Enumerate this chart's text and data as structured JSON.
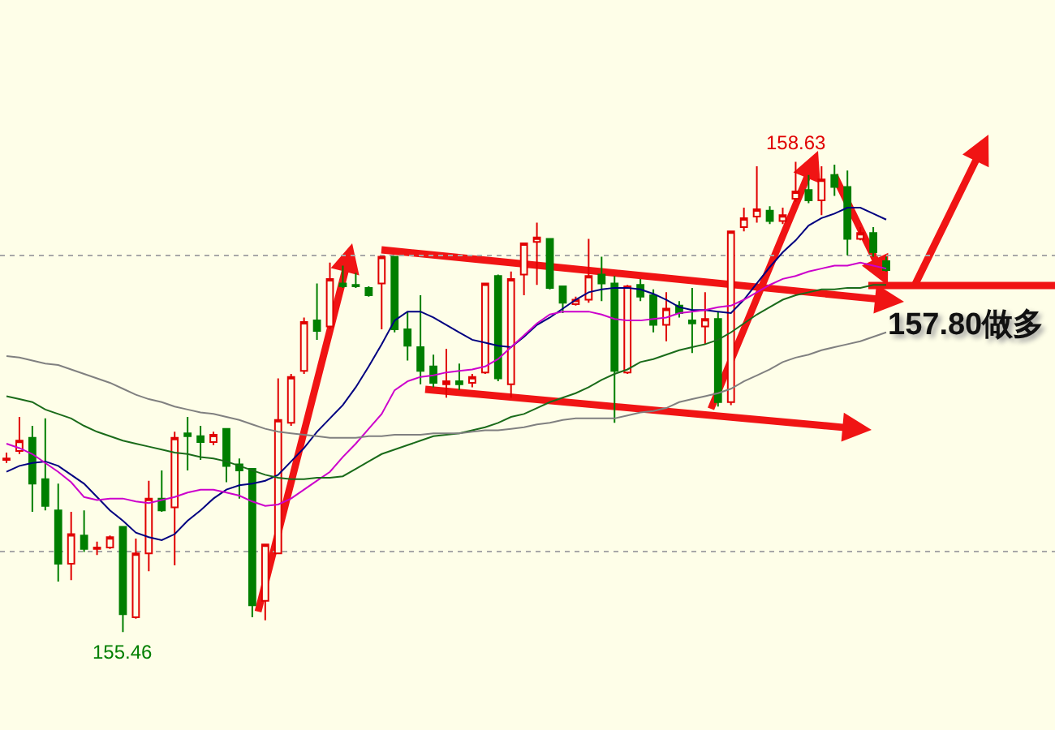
{
  "chart_data": {
    "type": "candlestick",
    "categories": [
      null,
      null,
      null,
      null,
      null,
      null,
      null,
      null,
      null,
      null,
      null,
      null,
      null,
      null,
      null,
      null,
      null,
      null,
      null,
      null,
      null,
      null,
      null,
      null,
      null,
      null,
      null,
      null,
      null,
      null,
      null,
      null,
      null,
      null,
      null,
      null,
      null,
      null,
      null,
      null,
      null,
      null,
      null,
      null,
      null,
      null,
      null,
      null,
      null,
      null,
      null,
      null,
      null,
      null,
      null,
      null,
      null,
      null,
      null,
      null,
      null,
      null,
      null,
      null,
      null,
      null,
      null,
      null,
      null
    ],
    "ohlc": [
      [
        156.62,
        156.67,
        156.6,
        156.63
      ],
      [
        156.68,
        156.91,
        156.66,
        156.75
      ],
      [
        156.77,
        156.85,
        156.27,
        156.46
      ],
      [
        156.49,
        156.9,
        156.28,
        156.31
      ],
      [
        156.28,
        156.46,
        155.8,
        155.92
      ],
      [
        155.92,
        156.27,
        155.81,
        156.12
      ],
      [
        156.11,
        156.28,
        156.0,
        156.02
      ],
      [
        156.02,
        156.07,
        155.98,
        156.03
      ],
      [
        156.03,
        156.11,
        156.02,
        156.1
      ],
      [
        156.17,
        156.17,
        155.46,
        155.58
      ],
      [
        155.56,
        156.09,
        155.55,
        155.99
      ],
      [
        155.99,
        156.48,
        155.87,
        156.36
      ],
      [
        156.36,
        156.55,
        156.27,
        156.28
      ],
      [
        156.3,
        156.81,
        155.91,
        156.77
      ],
      [
        156.8,
        156.91,
        156.55,
        156.78
      ],
      [
        156.78,
        156.85,
        156.62,
        156.74
      ],
      [
        156.74,
        156.81,
        156.72,
        156.79
      ],
      [
        156.83,
        156.83,
        156.47,
        156.58
      ],
      [
        156.59,
        156.63,
        156.36,
        156.55
      ],
      [
        156.56,
        156.56,
        155.56,
        155.64
      ],
      [
        155.67,
        156.05,
        155.54,
        156.05
      ],
      [
        155.99,
        157.17,
        155.99,
        156.89
      ],
      [
        156.87,
        157.2,
        156.85,
        157.18
      ],
      [
        157.22,
        157.58,
        157.2,
        157.55
      ],
      [
        157.56,
        157.81,
        157.43,
        157.49
      ],
      [
        157.52,
        157.95,
        157.5,
        157.84
      ],
      [
        157.81,
        157.93,
        157.78,
        157.79
      ],
      [
        157.8,
        157.88,
        157.78,
        157.79
      ],
      [
        157.78,
        157.79,
        157.72,
        157.73
      ],
      [
        157.81,
        157.99,
        157.5,
        157.99
      ],
      [
        157.99,
        157.99,
        157.48,
        157.5
      ],
      [
        157.5,
        157.62,
        157.29,
        157.39
      ],
      [
        157.38,
        157.73,
        157.13,
        157.22
      ],
      [
        157.25,
        157.33,
        157.11,
        157.14
      ],
      [
        157.13,
        157.37,
        157.04,
        157.15
      ],
      [
        157.15,
        157.27,
        157.09,
        157.13
      ],
      [
        157.14,
        157.2,
        157.11,
        157.18
      ],
      [
        157.21,
        157.81,
        157.2,
        157.81
      ],
      [
        157.86,
        157.87,
        157.15,
        157.17
      ],
      [
        157.13,
        157.89,
        157.04,
        157.84
      ],
      [
        157.87,
        158.08,
        157.73,
        158.08
      ],
      [
        158.09,
        158.22,
        157.8,
        158.12
      ],
      [
        158.11,
        158.11,
        157.77,
        157.78
      ],
      [
        157.79,
        157.79,
        157.61,
        157.68
      ],
      [
        157.67,
        157.72,
        157.66,
        157.7
      ],
      [
        157.7,
        158.11,
        157.68,
        157.86
      ],
      [
        157.87,
        157.99,
        157.69,
        157.81
      ],
      [
        157.81,
        157.86,
        156.87,
        157.22
      ],
      [
        157.21,
        157.8,
        157.2,
        157.79
      ],
      [
        157.8,
        157.84,
        157.69,
        157.72
      ],
      [
        157.73,
        157.77,
        157.48,
        157.53
      ],
      [
        157.53,
        157.75,
        157.42,
        157.64
      ],
      [
        157.66,
        157.69,
        157.58,
        157.61
      ],
      [
        157.56,
        157.78,
        157.34,
        157.54
      ],
      [
        157.52,
        157.75,
        157.4,
        157.57
      ],
      [
        157.57,
        157.62,
        156.98,
        157.01
      ],
      [
        157.01,
        158.16,
        156.99,
        158.16
      ],
      [
        158.19,
        158.32,
        158.16,
        158.25
      ],
      [
        158.26,
        158.6,
        158.22,
        158.31
      ],
      [
        158.3,
        158.33,
        158.21,
        158.23
      ],
      [
        158.23,
        158.32,
        158.21,
        158.27
      ],
      [
        158.38,
        158.63,
        158.36,
        158.43
      ],
      [
        158.44,
        158.54,
        158.35,
        158.37
      ],
      [
        158.37,
        158.6,
        158.27,
        158.51
      ],
      [
        158.54,
        158.61,
        158.4,
        158.46
      ],
      [
        158.46,
        158.57,
        158.0,
        158.11
      ],
      [
        158.11,
        158.19,
        158.1,
        158.15
      ],
      [
        158.15,
        158.19,
        157.99,
        158.02
      ],
      [
        157.96,
        157.99,
        157.89,
        157.9
      ]
    ],
    "colors": [
      "#e00000",
      "#e00000",
      "#007f00",
      "#007f00",
      "#007f00",
      "#e00000",
      "#007f00",
      "#e00000",
      "#e00000",
      "#007f00",
      "#e00000",
      "#e00000",
      "#007f00",
      "#e00000",
      "#007f00",
      "#007f00",
      "#e00000",
      "#007f00",
      "#007f00",
      "#007f00",
      "#e00000",
      "#e00000",
      "#e00000",
      "#e00000",
      "#007f00",
      "#e00000",
      "#007f00",
      "#007f00",
      "#007f00",
      "#e00000",
      "#007f00",
      "#007f00",
      "#007f00",
      "#007f00",
      "#e00000",
      "#007f00",
      "#e00000",
      "#e00000",
      "#007f00",
      "#e00000",
      "#e00000",
      "#e00000",
      "#007f00",
      "#007f00",
      "#e00000",
      "#e00000",
      "#007f00",
      "#007f00",
      "#e00000",
      "#007f00",
      "#007f00",
      "#e00000",
      "#007f00",
      "#007f00",
      "#e00000",
      "#007f00",
      "#e00000",
      "#e00000",
      "#e00000",
      "#007f00",
      "#e00000",
      "#e00000",
      "#007f00",
      "#e00000",
      "#007f00",
      "#007f00",
      "#e00000",
      "#007f00",
      "#007f00"
    ],
    "series": [
      {
        "type": "line",
        "color": "#000080",
        "values": [
          156.54,
          156.58,
          156.6,
          156.61,
          156.58,
          156.52,
          156.46,
          156.37,
          156.28,
          156.21,
          156.13,
          156.1,
          156.08,
          156.12,
          156.21,
          156.28,
          156.36,
          156.42,
          156.45,
          156.46,
          156.48,
          156.52,
          156.61,
          156.7,
          156.81,
          156.9,
          156.99,
          157.11,
          157.25,
          157.4,
          157.56,
          157.62,
          157.62,
          157.58,
          157.53,
          157.48,
          157.43,
          157.41,
          157.39,
          157.38,
          157.45,
          157.53,
          157.58,
          157.64,
          157.7,
          157.75,
          157.77,
          157.78,
          157.78,
          157.77,
          157.74,
          157.7,
          157.65,
          157.63,
          157.63,
          157.62,
          157.61,
          157.7,
          157.81,
          157.92,
          158.02,
          158.1,
          158.2,
          158.25,
          158.28,
          158.32,
          158.32,
          158.28,
          158.24
        ]
      },
      {
        "type": "line",
        "color": "#cc00cc",
        "values": [
          156.73,
          156.7,
          156.66,
          156.6,
          156.54,
          156.47,
          156.37,
          156.35,
          156.36,
          156.36,
          156.34,
          156.33,
          156.35,
          156.37,
          156.4,
          156.42,
          156.42,
          156.4,
          156.38,
          156.34,
          156.31,
          156.32,
          156.36,
          156.42,
          156.48,
          156.54,
          156.64,
          156.73,
          156.83,
          156.93,
          157.09,
          157.15,
          157.18,
          157.19,
          157.21,
          157.22,
          157.23,
          157.25,
          157.3,
          157.38,
          157.46,
          157.54,
          157.6,
          157.62,
          157.62,
          157.62,
          157.6,
          157.57,
          157.56,
          157.56,
          157.57,
          157.58,
          157.61,
          157.62,
          157.63,
          157.65,
          157.66,
          157.7,
          157.75,
          157.8,
          157.84,
          157.86,
          157.89,
          157.91,
          157.93,
          157.93,
          157.95,
          157.93,
          157.91
        ]
      },
      {
        "type": "line",
        "color": "#1a6b1a",
        "values": [
          157.05,
          157.03,
          157.01,
          156.96,
          156.93,
          156.9,
          156.85,
          156.81,
          156.78,
          156.75,
          156.73,
          156.71,
          156.69,
          156.67,
          156.66,
          156.64,
          156.63,
          156.61,
          156.58,
          156.55,
          156.52,
          156.5,
          156.49,
          156.49,
          156.5,
          156.5,
          156.51,
          156.56,
          156.61,
          156.66,
          156.69,
          156.72,
          156.75,
          156.78,
          156.79,
          156.8,
          156.82,
          156.84,
          156.87,
          156.91,
          156.93,
          156.97,
          157.01,
          157.04,
          157.07,
          157.11,
          157.16,
          157.2,
          157.23,
          157.28,
          157.3,
          157.33,
          157.36,
          157.38,
          157.4,
          157.43,
          157.48,
          157.54,
          157.6,
          157.65,
          157.7,
          157.73,
          157.75,
          157.77,
          157.77,
          157.78,
          157.78,
          157.8,
          157.8
        ]
      },
      {
        "type": "line",
        "color": "#808080",
        "values": [
          157.32,
          157.31,
          157.29,
          157.27,
          157.26,
          157.23,
          157.2,
          157.17,
          157.14,
          157.1,
          157.06,
          157.03,
          157.01,
          156.98,
          156.96,
          156.94,
          156.93,
          156.91,
          156.89,
          156.86,
          156.83,
          156.81,
          156.8,
          156.79,
          156.78,
          156.77,
          156.77,
          156.77,
          156.78,
          156.78,
          156.79,
          156.79,
          156.79,
          156.8,
          156.8,
          156.8,
          156.81,
          156.82,
          156.82,
          156.83,
          156.84,
          156.86,
          156.87,
          156.89,
          156.9,
          156.9,
          156.9,
          156.9,
          156.92,
          156.94,
          156.95,
          156.97,
          157.01,
          157.03,
          157.05,
          157.07,
          157.1,
          157.15,
          157.19,
          157.23,
          157.28,
          157.31,
          157.33,
          157.36,
          157.38,
          157.4,
          157.42,
          157.45,
          157.48
        ]
      }
    ],
    "annotations": [
      {
        "text": "158.63",
        "y": 158.63
      },
      {
        "text": "155.46",
        "y": 155.46
      },
      "157.80做多"
    ],
    "ylim": [
      154.8,
      159.72
    ],
    "yticks": [
      {
        "value": 156,
        "label": null
      },
      {
        "value": 158,
        "label": null
      }
    ],
    "grid": "y"
  }
}
